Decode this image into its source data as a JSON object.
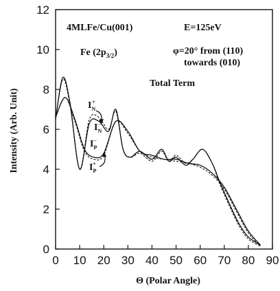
{
  "chart_data": {
    "type": "line",
    "annotations": {
      "sample": "4MLFe/Cu(001)",
      "energy": "E=125eV",
      "level_main": "Fe (2p",
      "level_sub": "3/2",
      "level_close": ")",
      "angle_line1": "φ=20° from (110)",
      "angle_line2": "towards (010)",
      "term": "Total Term"
    },
    "curve_labels": [
      {
        "main": "I",
        "sub": "N",
        "sup": "+"
      },
      {
        "main": "I",
        "sub": "N",
        "sup": "−"
      },
      {
        "main": "I",
        "sub": "P",
        "sup": "−"
      },
      {
        "main": "I",
        "sub": "P",
        "sup": "+"
      }
    ],
    "xlabel": "Θ (Polar Angle)",
    "ylabel": "Intensity (Arb. Unit)",
    "xlim": [
      0,
      90
    ],
    "ylim": [
      0,
      12
    ],
    "xticks": [
      0,
      10,
      20,
      30,
      40,
      50,
      60,
      70,
      80,
      90
    ],
    "yticks": [
      0,
      2,
      4,
      6,
      8,
      10,
      12
    ],
    "series": [
      {
        "style": "solid",
        "x": [
          0,
          3,
          6,
          10,
          14,
          18,
          22,
          25,
          28,
          31,
          35,
          40,
          44,
          47,
          50,
          54,
          57,
          61,
          65,
          68,
          72,
          76,
          80,
          85
        ],
        "y": [
          6.5,
          8.6,
          7.3,
          4.0,
          6.3,
          6.4,
          5.9,
          7.0,
          5.0,
          4.6,
          4.9,
          4.5,
          5.0,
          4.4,
          4.6,
          4.2,
          4.5,
          5.0,
          4.3,
          3.4,
          2.3,
          1.3,
          0.6,
          0.2
        ]
      },
      {
        "style": "solid",
        "x": [
          0,
          4,
          8,
          12,
          16,
          20,
          25,
          30,
          35,
          40,
          45,
          50,
          55,
          60,
          65,
          70,
          75,
          80,
          85
        ],
        "y": [
          6.6,
          7.6,
          6.5,
          5.0,
          4.6,
          4.8,
          6.4,
          5.9,
          4.9,
          4.7,
          4.5,
          4.5,
          4.3,
          4.2,
          3.8,
          3.1,
          2.0,
          0.9,
          0.2
        ]
      },
      {
        "style": "dashed",
        "x": [
          0,
          3,
          6,
          10,
          14,
          18,
          22,
          25,
          28,
          31,
          35,
          40,
          44,
          47,
          50,
          54,
          57,
          61,
          65,
          68,
          72,
          76,
          80,
          85
        ],
        "y": [
          6.5,
          8.5,
          7.2,
          4.0,
          6.5,
          6.6,
          6.0,
          6.9,
          5.0,
          4.6,
          4.8,
          4.4,
          4.9,
          4.4,
          4.7,
          4.3,
          4.5,
          5.0,
          4.3,
          3.3,
          2.2,
          1.2,
          0.5,
          0.15
        ]
      },
      {
        "style": "dashed",
        "x": [
          0,
          4,
          8,
          12,
          16,
          20,
          25,
          30,
          35,
          40,
          45,
          50,
          55,
          60,
          65,
          70,
          75,
          80,
          85
        ],
        "y": [
          6.6,
          7.6,
          6.4,
          4.9,
          4.5,
          4.7,
          6.4,
          5.8,
          4.9,
          4.6,
          4.5,
          4.4,
          4.3,
          4.1,
          3.7,
          3.0,
          1.9,
          0.8,
          0.15
        ]
      }
    ]
  }
}
